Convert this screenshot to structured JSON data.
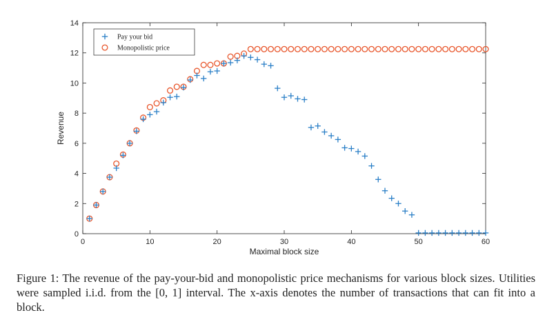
{
  "chart_data": {
    "type": "scatter",
    "xlabel": "Maximal block size",
    "ylabel": "Revenue",
    "xlim": [
      0,
      60
    ],
    "ylim": [
      0,
      14
    ],
    "xticks": [
      0,
      10,
      20,
      30,
      40,
      50,
      60
    ],
    "yticks": [
      0,
      2,
      4,
      6,
      8,
      10,
      12,
      14
    ],
    "legend_position": "top-left",
    "series": [
      {
        "name": "Pay your bid",
        "marker": "plus",
        "color": "#2a7fc7",
        "points": [
          [
            1,
            1.0
          ],
          [
            2,
            1.9
          ],
          [
            3,
            2.8
          ],
          [
            4,
            3.75
          ],
          [
            5,
            4.35
          ],
          [
            6,
            5.2
          ],
          [
            7,
            6.0
          ],
          [
            8,
            6.8
          ],
          [
            9,
            7.6
          ],
          [
            10,
            7.9
          ],
          [
            11,
            8.1
          ],
          [
            12,
            8.7
          ],
          [
            13,
            9.05
          ],
          [
            14,
            9.1
          ],
          [
            15,
            9.7
          ],
          [
            16,
            10.2
          ],
          [
            17,
            10.5
          ],
          [
            18,
            10.3
          ],
          [
            19,
            10.75
          ],
          [
            20,
            10.8
          ],
          [
            21,
            11.3
          ],
          [
            22,
            11.35
          ],
          [
            23,
            11.5
          ],
          [
            24,
            11.8
          ],
          [
            25,
            11.7
          ],
          [
            26,
            11.55
          ],
          [
            27,
            11.25
          ],
          [
            28,
            11.15
          ],
          [
            29,
            9.65
          ],
          [
            30,
            9.05
          ],
          [
            31,
            9.15
          ],
          [
            32,
            8.95
          ],
          [
            33,
            8.9
          ],
          [
            34,
            7.05
          ],
          [
            35,
            7.15
          ],
          [
            36,
            6.75
          ],
          [
            37,
            6.5
          ],
          [
            38,
            6.25
          ],
          [
            39,
            5.7
          ],
          [
            40,
            5.65
          ],
          [
            41,
            5.45
          ],
          [
            42,
            5.15
          ],
          [
            43,
            4.5
          ],
          [
            44,
            3.6
          ],
          [
            45,
            2.85
          ],
          [
            46,
            2.35
          ],
          [
            47,
            2.0
          ],
          [
            48,
            1.5
          ],
          [
            49,
            1.25
          ],
          [
            50,
            0.05
          ],
          [
            51,
            0.05
          ],
          [
            52,
            0.05
          ],
          [
            53,
            0.05
          ],
          [
            54,
            0.05
          ],
          [
            55,
            0.05
          ],
          [
            56,
            0.05
          ],
          [
            57,
            0.05
          ],
          [
            58,
            0.05
          ],
          [
            59,
            0.05
          ],
          [
            60,
            0.05
          ]
        ]
      },
      {
        "name": "Monopolistic price",
        "marker": "circle",
        "color": "#e8552a",
        "points": [
          [
            1,
            1.0
          ],
          [
            2,
            1.9
          ],
          [
            3,
            2.8
          ],
          [
            4,
            3.75
          ],
          [
            5,
            4.65
          ],
          [
            6,
            5.25
          ],
          [
            7,
            6.0
          ],
          [
            8,
            6.85
          ],
          [
            9,
            7.7
          ],
          [
            10,
            8.4
          ],
          [
            11,
            8.65
          ],
          [
            12,
            8.85
          ],
          [
            13,
            9.5
          ],
          [
            14,
            9.75
          ],
          [
            15,
            9.75
          ],
          [
            16,
            10.25
          ],
          [
            17,
            10.8
          ],
          [
            18,
            11.2
          ],
          [
            19,
            11.2
          ],
          [
            20,
            11.3
          ],
          [
            21,
            11.3
          ],
          [
            22,
            11.75
          ],
          [
            23,
            11.8
          ],
          [
            24,
            11.95
          ],
          [
            25,
            12.25
          ],
          [
            26,
            12.25
          ],
          [
            27,
            12.25
          ],
          [
            28,
            12.25
          ],
          [
            29,
            12.25
          ],
          [
            30,
            12.25
          ],
          [
            31,
            12.25
          ],
          [
            32,
            12.25
          ],
          [
            33,
            12.25
          ],
          [
            34,
            12.25
          ],
          [
            35,
            12.25
          ],
          [
            36,
            12.25
          ],
          [
            37,
            12.25
          ],
          [
            38,
            12.25
          ],
          [
            39,
            12.25
          ],
          [
            40,
            12.25
          ],
          [
            41,
            12.25
          ],
          [
            42,
            12.25
          ],
          [
            43,
            12.25
          ],
          [
            44,
            12.25
          ],
          [
            45,
            12.25
          ],
          [
            46,
            12.25
          ],
          [
            47,
            12.25
          ],
          [
            48,
            12.25
          ],
          [
            49,
            12.25
          ],
          [
            50,
            12.25
          ],
          [
            51,
            12.25
          ],
          [
            52,
            12.25
          ],
          [
            53,
            12.25
          ],
          [
            54,
            12.25
          ],
          [
            55,
            12.25
          ],
          [
            56,
            12.25
          ],
          [
            57,
            12.25
          ],
          [
            58,
            12.25
          ],
          [
            59,
            12.25
          ],
          [
            60,
            12.25
          ]
        ]
      }
    ]
  },
  "caption": "Figure 1: The revenue of the pay-your-bid and monopolistic price mechanisms for various block sizes. Utilities were sampled i.i.d. from the [0, 1] interval. The x-axis denotes the number of transactions that can fit into a block.",
  "colors": {
    "axis": "#222222"
  }
}
